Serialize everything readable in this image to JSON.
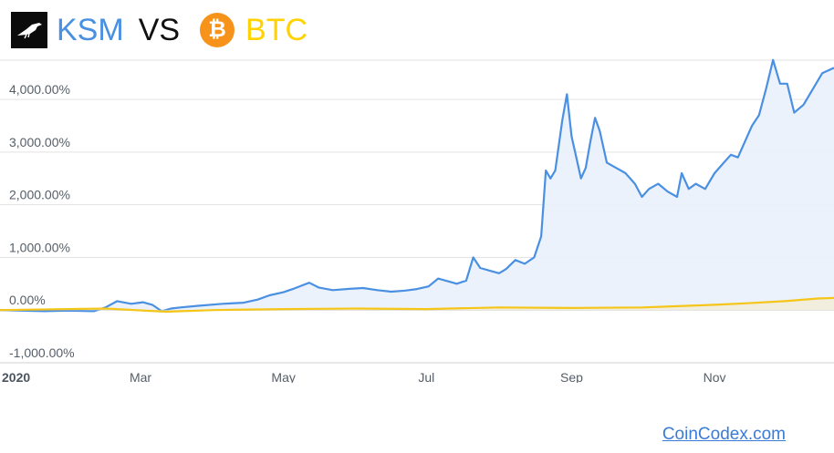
{
  "header": {
    "coin_a": "KSM",
    "vs": "VS",
    "coin_b": "BTC",
    "btc_symbol": "₿",
    "coin_a_color": "#4a90e2",
    "coin_b_color": "#ffd200"
  },
  "footer": {
    "link_text": "CoinCodex.com",
    "link_color": "#3a7bd5"
  },
  "chart_data": {
    "type": "line",
    "grid": true,
    "ylim": [
      -1000,
      4850
    ],
    "y_ticks": [
      -1000,
      0,
      1000,
      2000,
      3000,
      4000
    ],
    "y_tick_labels": [
      "-1,000.00%",
      "0.00%",
      "1,000.00%",
      "2,000.00%",
      "3,000.00%",
      "4,000.00%"
    ],
    "x_ticks": [
      "2020-01-01",
      "2020-03-01",
      "2020-05-01",
      "2020-07-01",
      "2020-09-01",
      "2020-11-01"
    ],
    "x_tick_labels": [
      "2020",
      "Mar",
      "May",
      "Jul",
      "Sep",
      "Nov"
    ],
    "x_range": [
      "2020-01-01",
      "2020-12-22"
    ],
    "series": [
      {
        "name": "KSM",
        "color": "#4a90e2",
        "fill": "#e9f1fb",
        "points": [
          [
            "2020-01-01",
            0
          ],
          [
            "2020-01-10",
            -10
          ],
          [
            "2020-01-20",
            -20
          ],
          [
            "2020-01-30",
            -10
          ],
          [
            "2020-02-10",
            -20
          ],
          [
            "2020-02-15",
            50
          ],
          [
            "2020-02-20",
            170
          ],
          [
            "2020-02-26",
            120
          ],
          [
            "2020-03-02",
            150
          ],
          [
            "2020-03-06",
            100
          ],
          [
            "2020-03-10",
            -20
          ],
          [
            "2020-03-14",
            30
          ],
          [
            "2020-03-18",
            50
          ],
          [
            "2020-03-25",
            80
          ],
          [
            "2020-04-05",
            120
          ],
          [
            "2020-04-14",
            140
          ],
          [
            "2020-04-20",
            200
          ],
          [
            "2020-04-25",
            280
          ],
          [
            "2020-05-01",
            340
          ],
          [
            "2020-05-05",
            400
          ],
          [
            "2020-05-09",
            470
          ],
          [
            "2020-05-12",
            520
          ],
          [
            "2020-05-16",
            430
          ],
          [
            "2020-05-22",
            380
          ],
          [
            "2020-05-28",
            400
          ],
          [
            "2020-06-04",
            420
          ],
          [
            "2020-06-10",
            380
          ],
          [
            "2020-06-16",
            350
          ],
          [
            "2020-06-22",
            370
          ],
          [
            "2020-06-27",
            400
          ],
          [
            "2020-07-02",
            450
          ],
          [
            "2020-07-06",
            600
          ],
          [
            "2020-07-10",
            550
          ],
          [
            "2020-07-14",
            500
          ],
          [
            "2020-07-18",
            560
          ],
          [
            "2020-07-21",
            1000
          ],
          [
            "2020-07-24",
            800
          ],
          [
            "2020-07-28",
            750
          ],
          [
            "2020-08-01",
            700
          ],
          [
            "2020-08-04",
            780
          ],
          [
            "2020-08-08",
            950
          ],
          [
            "2020-08-12",
            880
          ],
          [
            "2020-08-16",
            1000
          ],
          [
            "2020-08-19",
            1400
          ],
          [
            "2020-08-21",
            2650
          ],
          [
            "2020-08-23",
            2500
          ],
          [
            "2020-08-25",
            2650
          ],
          [
            "2020-08-28",
            3600
          ],
          [
            "2020-08-30",
            4100
          ],
          [
            "2020-09-01",
            3300
          ],
          [
            "2020-09-03",
            2900
          ],
          [
            "2020-09-05",
            2500
          ],
          [
            "2020-09-07",
            2700
          ],
          [
            "2020-09-09",
            3200
          ],
          [
            "2020-09-11",
            3650
          ],
          [
            "2020-09-13",
            3400
          ],
          [
            "2020-09-16",
            2800
          ],
          [
            "2020-09-20",
            2700
          ],
          [
            "2020-09-24",
            2600
          ],
          [
            "2020-09-28",
            2400
          ],
          [
            "2020-10-01",
            2150
          ],
          [
            "2020-10-04",
            2300
          ],
          [
            "2020-10-08",
            2400
          ],
          [
            "2020-10-12",
            2250
          ],
          [
            "2020-10-16",
            2150
          ],
          [
            "2020-10-18",
            2600
          ],
          [
            "2020-10-21",
            2300
          ],
          [
            "2020-10-24",
            2400
          ],
          [
            "2020-10-28",
            2300
          ],
          [
            "2020-11-01",
            2600
          ],
          [
            "2020-11-05",
            2800
          ],
          [
            "2020-11-08",
            2950
          ],
          [
            "2020-11-11",
            2900
          ],
          [
            "2020-11-14",
            3200
          ],
          [
            "2020-11-17",
            3500
          ],
          [
            "2020-11-20",
            3700
          ],
          [
            "2020-11-23",
            4200
          ],
          [
            "2020-11-26",
            4750
          ],
          [
            "2020-11-29",
            4300
          ],
          [
            "2020-12-02",
            4300
          ],
          [
            "2020-12-05",
            3750
          ],
          [
            "2020-12-09",
            3900
          ],
          [
            "2020-12-13",
            4200
          ],
          [
            "2020-12-17",
            4500
          ],
          [
            "2020-12-22",
            4600
          ]
        ]
      },
      {
        "name": "BTC",
        "color": "#f5c518",
        "fill": "#f3edd9",
        "points": [
          [
            "2020-01-01",
            0
          ],
          [
            "2020-02-15",
            30
          ],
          [
            "2020-03-12",
            -30
          ],
          [
            "2020-04-01",
            0
          ],
          [
            "2020-05-01",
            20
          ],
          [
            "2020-06-01",
            30
          ],
          [
            "2020-07-01",
            20
          ],
          [
            "2020-08-01",
            50
          ],
          [
            "2020-09-01",
            40
          ],
          [
            "2020-10-01",
            50
          ],
          [
            "2020-11-01",
            100
          ],
          [
            "2020-11-15",
            130
          ],
          [
            "2020-12-01",
            170
          ],
          [
            "2020-12-15",
            220
          ],
          [
            "2020-12-22",
            230
          ]
        ]
      }
    ]
  }
}
